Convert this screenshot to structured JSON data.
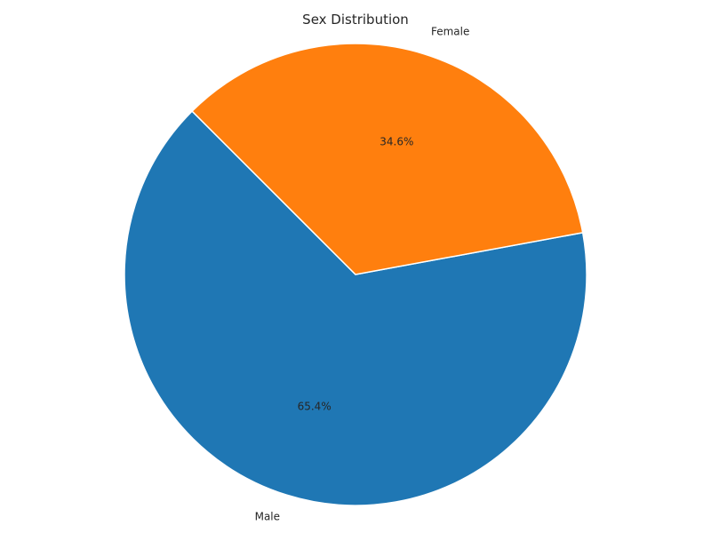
{
  "chart_data": {
    "type": "pie",
    "title": "Sex Distribution",
    "categories": [
      "Male",
      "Female"
    ],
    "values": [
      65.4,
      34.6
    ],
    "percent_labels": [
      "65.4%",
      "34.6%"
    ],
    "colors": [
      "#1f77b4",
      "#ff7f0e"
    ],
    "legend": "none"
  }
}
